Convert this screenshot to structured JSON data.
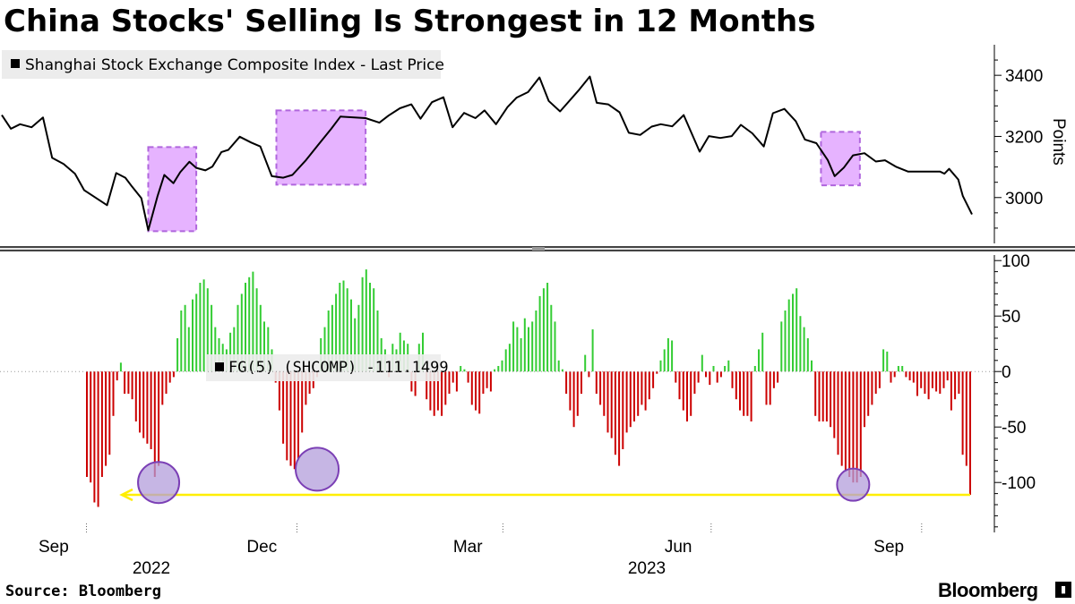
{
  "title": "China Stocks' Selling Is Strongest in 12 Months",
  "source": "Source: Bloomberg",
  "brand": "Bloomberg",
  "colors": {
    "price_line": "#000000",
    "positive": "#33cc33",
    "negative": "#cc0000",
    "highlight_box": "#e6b3ff",
    "highlight_box_border": "#b066dd",
    "circle_fill": "#b39ddb",
    "circle_border": "#7b3fb5",
    "arrow": "#ffee00"
  },
  "chart_data": [
    {
      "type": "line",
      "legend": "Shanghai Stock Exchange Composite Index - Last Price",
      "ylabel": "Points",
      "ylim": [
        2850,
        3500
      ],
      "yticks": [
        3000,
        3200,
        3400
      ],
      "series": [
        {
          "name": "Shanghai Stock Exchange Composite Index - Last Price",
          "x": [
            "2022-08-25",
            "2022-08-29",
            "2022-09-02",
            "2022-09-07",
            "2022-09-12",
            "2022-09-16",
            "2022-09-21",
            "2022-09-26",
            "2022-09-30",
            "2022-10-10",
            "2022-10-14",
            "2022-10-18",
            "2022-10-21",
            "2022-10-25",
            "2022-10-28",
            "2022-11-01",
            "2022-11-04",
            "2022-11-08",
            "2022-11-11",
            "2022-11-15",
            "2022-11-18",
            "2022-11-22",
            "2022-11-25",
            "2022-11-29",
            "2022-12-02",
            "2022-12-07",
            "2022-12-12",
            "2022-12-16",
            "2022-12-21",
            "2022-12-26",
            "2022-12-30",
            "2023-01-05",
            "2023-01-10",
            "2023-01-16",
            "2023-01-20",
            "2023-01-31",
            "2023-02-06",
            "2023-02-10",
            "2023-02-15",
            "2023-02-20",
            "2023-02-24",
            "2023-03-01",
            "2023-03-06",
            "2023-03-10",
            "2023-03-15",
            "2023-03-20",
            "2023-03-24",
            "2023-03-29",
            "2023-04-03",
            "2023-04-07",
            "2023-04-12",
            "2023-04-17",
            "2023-04-21",
            "2023-04-26",
            "2023-05-04",
            "2023-05-09",
            "2023-05-12",
            "2023-05-17",
            "2023-05-22",
            "2023-05-26",
            "2023-05-31",
            "2023-06-05",
            "2023-06-09",
            "2023-06-14",
            "2023-06-19",
            "2023-06-26",
            "2023-06-30",
            "2023-07-05",
            "2023-07-10",
            "2023-07-14",
            "2023-07-19",
            "2023-07-24",
            "2023-07-28",
            "2023-08-02",
            "2023-08-07",
            "2023-08-11",
            "2023-08-16",
            "2023-08-21",
            "2023-08-24",
            "2023-08-28",
            "2023-09-01",
            "2023-09-06",
            "2023-09-11",
            "2023-09-15",
            "2023-09-20",
            "2023-09-25",
            "2023-10-09",
            "2023-10-11",
            "2023-10-13",
            "2023-10-17",
            "2023-10-19",
            "2023-10-23"
          ],
          "values": [
            3270,
            3225,
            3240,
            3230,
            3262,
            3130,
            3110,
            3078,
            3024,
            2975,
            3080,
            3065,
            3035,
            2998,
            2893,
            3003,
            3074,
            3047,
            3083,
            3117,
            3097,
            3089,
            3101,
            3149,
            3156,
            3199,
            3180,
            3167,
            3070,
            3065,
            3074,
            3123,
            3170,
            3225,
            3265,
            3260,
            3245,
            3268,
            3292,
            3305,
            3258,
            3312,
            3328,
            3230,
            3277,
            3260,
            3285,
            3240,
            3296,
            3327,
            3345,
            3393,
            3316,
            3282,
            3350,
            3396,
            3310,
            3305,
            3279,
            3212,
            3205,
            3232,
            3240,
            3233,
            3270,
            3150,
            3201,
            3195,
            3201,
            3238,
            3210,
            3167,
            3276,
            3290,
            3250,
            3190,
            3178,
            3122,
            3070,
            3098,
            3138,
            3145,
            3118,
            3122,
            3100,
            3085,
            3085,
            3078,
            3094,
            3059,
            3005,
            2945
          ]
        }
      ],
      "highlights": [
        {
          "x0": "2022-10-28",
          "x1": "2022-11-18",
          "y0": 2890,
          "y1": 3165
        },
        {
          "x0": "2022-12-23",
          "x1": "2023-01-31",
          "y0": 3042,
          "y1": 3285
        },
        {
          "x0": "2023-08-18",
          "x1": "2023-09-04",
          "y0": 3040,
          "y1": 3215
        }
      ]
    },
    {
      "type": "bar",
      "legend": "FG(5) (SHCOMP) -111.1499",
      "ylim": [
        -145,
        105
      ],
      "yticks": [
        -100,
        -50,
        0,
        50,
        100
      ],
      "series": [
        {
          "name": "FG(5) (SHCOMP)",
          "values": [
            -95,
            -100,
            -118,
            -122,
            -95,
            -85,
            -75,
            -40,
            -8,
            8,
            -20,
            -20,
            -25,
            -45,
            -55,
            -60,
            -65,
            -70,
            -95,
            -85,
            -30,
            -20,
            -10,
            -5,
            30,
            55,
            60,
            40,
            65,
            70,
            80,
            83,
            75,
            60,
            40,
            30,
            25,
            20,
            35,
            40,
            60,
            70,
            80,
            85,
            90,
            75,
            60,
            45,
            40,
            20,
            -10,
            -35,
            -65,
            -80,
            -85,
            -88,
            -80,
            -55,
            -30,
            -20,
            -15,
            -5,
            30,
            40,
            55,
            60,
            70,
            80,
            82,
            75,
            65,
            48,
            60,
            85,
            92,
            80,
            75,
            55,
            30,
            20,
            -5,
            25,
            20,
            35,
            28,
            25,
            -18,
            -22,
            25,
            35,
            -25,
            -35,
            -40,
            -35,
            -40,
            -30,
            -20,
            -10,
            -18,
            5,
            2,
            -10,
            -30,
            -35,
            -38,
            -20,
            -15,
            -18,
            2,
            5,
            10,
            20,
            25,
            45,
            40,
            30,
            48,
            40,
            45,
            55,
            68,
            75,
            80,
            60,
            45,
            10,
            2,
            -20,
            -35,
            -50,
            -40,
            -20,
            15,
            -5,
            38,
            -20,
            -30,
            -40,
            -55,
            -60,
            -75,
            -85,
            -70,
            -55,
            -50,
            -45,
            -40,
            -30,
            -35,
            -25,
            -15,
            -2,
            10,
            20,
            30,
            28,
            -10,
            -25,
            -35,
            -45,
            -40,
            -20,
            -10,
            15,
            -5,
            -12,
            5,
            -10,
            -5,
            5,
            10,
            -15,
            -25,
            -35,
            -40,
            -40,
            -45,
            5,
            20,
            35,
            -30,
            -30,
            -15,
            -10,
            45,
            55,
            65,
            70,
            75,
            50,
            40,
            30,
            10,
            -40,
            -45,
            -45,
            -45,
            -50,
            -60,
            -75,
            -85,
            -90,
            -95,
            -100,
            -100,
            -95,
            -50,
            -40,
            -30,
            -20,
            -15,
            20,
            18,
            -10,
            -5,
            5,
            5,
            -5,
            -8,
            -10,
            -22,
            -15,
            -20,
            -25,
            -15,
            -18,
            -20,
            -15,
            -8,
            -35,
            -25,
            -20,
            -75,
            -85,
            -111.1499
          ]
        }
      ],
      "annotations": {
        "circles_at_values": [
          -100,
          -88,
          -102
        ],
        "arrow_level": -111.1499
      }
    }
  ],
  "x_axis": {
    "months": [
      "Sep",
      "Dec",
      "Mar",
      "Jun",
      "Sep"
    ],
    "years": [
      "2022",
      "2023"
    ]
  }
}
